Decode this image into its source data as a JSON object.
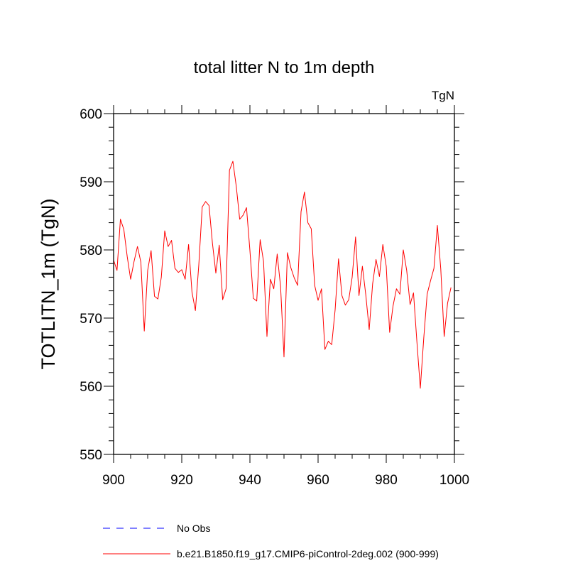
{
  "chart_data": {
    "type": "line",
    "title": "total litter N to 1m depth",
    "units": "TgN",
    "xlabel": "",
    "ylabel": "TOTLITN_1m  (TgN)",
    "xlim": [
      900,
      1000
    ],
    "ylim": [
      550,
      600
    ],
    "xticks": [
      900,
      920,
      940,
      960,
      980,
      1000
    ],
    "xtick_labels": [
      "900",
      "920",
      "940",
      "960",
      "980",
      "1000"
    ],
    "yticks": [
      550,
      560,
      570,
      580,
      590,
      600
    ],
    "ytick_labels": [
      "550",
      "560",
      "570",
      "580",
      "590",
      "600"
    ],
    "series": [
      {
        "name": "b.e21.B1850.f19_g17.CMIP6-piControl-2deg.002 (900-999)",
        "color": "#ff0000",
        "x": [
          900,
          901,
          902,
          903,
          904,
          905,
          906,
          907,
          908,
          909,
          910,
          911,
          912,
          913,
          914,
          915,
          916,
          917,
          918,
          919,
          920,
          921,
          922,
          923,
          924,
          925,
          926,
          927,
          928,
          929,
          930,
          931,
          932,
          933,
          934,
          935,
          936,
          937,
          938,
          939,
          940,
          941,
          942,
          943,
          944,
          945,
          946,
          947,
          948,
          949,
          950,
          951,
          952,
          953,
          954,
          955,
          956,
          957,
          958,
          959,
          960,
          961,
          962,
          963,
          964,
          965,
          966,
          967,
          968,
          969,
          970,
          971,
          972,
          973,
          974,
          975,
          976,
          977,
          978,
          979,
          980,
          981,
          982,
          983,
          984,
          985,
          986,
          987,
          988,
          989,
          990,
          991,
          992,
          993,
          994,
          995,
          996,
          997,
          998,
          999
        ],
        "values": [
          578.5,
          577.0,
          584.5,
          583.0,
          579.0,
          575.7,
          578.3,
          580.5,
          578.2,
          568.1,
          577.0,
          579.9,
          573.2,
          572.8,
          576.0,
          582.8,
          580.5,
          581.4,
          577.3,
          576.7,
          577.1,
          575.7,
          580.8,
          573.8,
          571.1,
          577.8,
          586.3,
          587.1,
          586.5,
          581.0,
          576.6,
          580.7,
          572.7,
          574.3,
          591.7,
          593.0,
          589.3,
          584.5,
          585.1,
          586.2,
          579.9,
          572.9,
          572.5,
          581.5,
          578.3,
          567.3,
          575.7,
          574.3,
          579.4,
          574.6,
          564.3,
          579.6,
          577.4,
          575.9,
          574.8,
          585.6,
          588.5,
          584.0,
          583.1,
          574.8,
          572.6,
          574.3,
          565.4,
          566.6,
          566.1,
          571.2,
          578.7,
          573.3,
          571.9,
          572.7,
          576.0,
          581.9,
          573.3,
          577.6,
          573.4,
          568.3,
          575.0,
          578.6,
          576.1,
          580.8,
          577.6,
          567.9,
          571.8,
          574.3,
          573.5,
          580.0,
          577.0,
          572.0,
          573.7,
          566.5,
          559.7,
          567.0,
          573.5,
          575.5,
          577.3,
          583.6,
          577.2,
          567.3,
          572.2,
          574.5
        ]
      }
    ],
    "legend": [
      {
        "label": "No Obs",
        "color": "#0000ff",
        "style": "dashed"
      },
      {
        "label": "b.e21.B1850.f19_g17.CMIP6-piControl-2deg.002 (900-999)",
        "color": "#ff0000",
        "style": "solid"
      }
    ]
  }
}
